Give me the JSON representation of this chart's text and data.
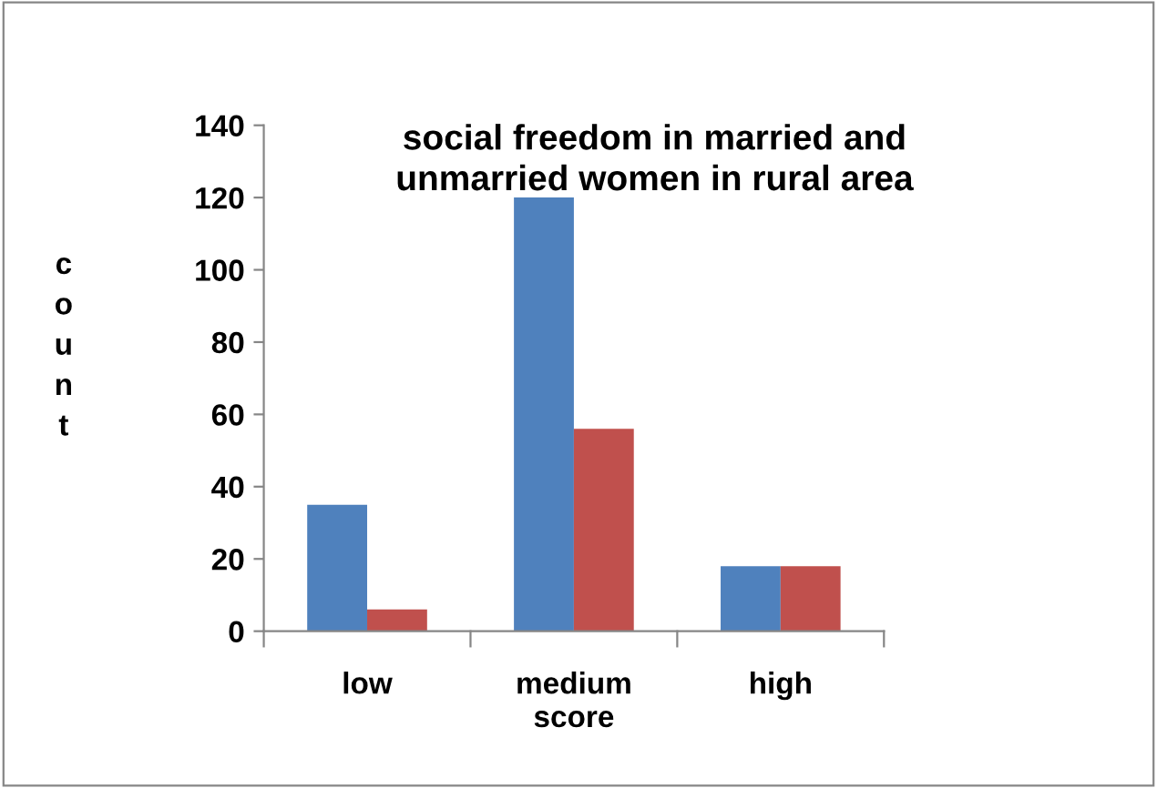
{
  "chart_data": {
    "type": "bar",
    "title": "social freedom in married and\nunmarried women in rural area",
    "xlabel": "score",
    "ylabel": "count",
    "categories": [
      "low",
      "medium",
      "high"
    ],
    "series": [
      {
        "color": "#4f81bd",
        "values": [
          35,
          120,
          18
        ]
      },
      {
        "color": "#c0504d",
        "values": [
          6,
          56,
          18
        ]
      }
    ],
    "ylim": [
      0,
      140
    ],
    "yticks": [
      0,
      20,
      40,
      60,
      80,
      100,
      120,
      140
    ],
    "grid": false,
    "legend": false
  }
}
